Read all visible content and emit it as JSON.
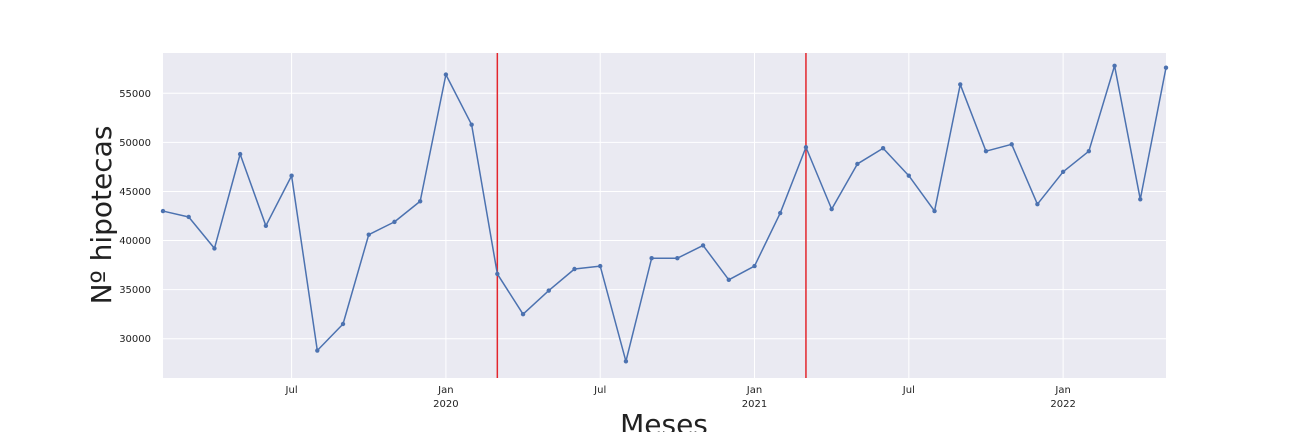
{
  "chart_data": {
    "type": "line",
    "title": "",
    "xlabel": "Meses",
    "ylabel": "Nº hipotecas",
    "x": [
      "2019-02",
      "2019-03",
      "2019-04",
      "2019-05",
      "2019-06",
      "2019-07",
      "2019-08",
      "2019-09",
      "2019-10",
      "2019-11",
      "2019-12",
      "2020-01",
      "2020-02",
      "2020-03",
      "2020-04",
      "2020-05",
      "2020-06",
      "2020-07",
      "2020-08",
      "2020-09",
      "2020-10",
      "2020-11",
      "2020-12",
      "2021-01",
      "2021-02",
      "2021-03",
      "2021-04",
      "2021-05",
      "2021-06",
      "2021-07",
      "2021-08",
      "2021-09",
      "2021-10",
      "2021-11",
      "2021-12",
      "2022-01",
      "2022-02",
      "2022-03",
      "2022-04",
      "2022-05"
    ],
    "series": [
      {
        "values": [
          43000,
          42400,
          39200,
          48800,
          41500,
          46600,
          28800,
          31500,
          40600,
          41900,
          44000,
          56900,
          51800,
          36600,
          32500,
          34900,
          37100,
          37400,
          27700,
          38200,
          38200,
          39500,
          36000,
          37400,
          42800,
          49500,
          43200,
          47800,
          49400,
          46600,
          43000,
          55900,
          49100,
          49800,
          43700,
          47000,
          49100,
          57800,
          44200,
          57600
        ],
        "color": "#4c72b0"
      }
    ],
    "vlines": [
      {
        "x": "2020-03",
        "color": "#e3262d"
      },
      {
        "x": "2021-03",
        "color": "#e3262d"
      }
    ],
    "xlim": [
      "2019-02",
      "2022-05"
    ],
    "ylim": [
      26000,
      59100
    ],
    "yticks": [
      30000,
      35000,
      40000,
      45000,
      50000,
      55000
    ],
    "xticks": [
      {
        "x": "2019-07",
        "label": "Jul",
        "sublabel": ""
      },
      {
        "x": "2020-01",
        "label": "Jan",
        "sublabel": "2020"
      },
      {
        "x": "2020-07",
        "label": "Jul",
        "sublabel": ""
      },
      {
        "x": "2021-01",
        "label": "Jan",
        "sublabel": "2021"
      },
      {
        "x": "2021-07",
        "label": "Jul",
        "sublabel": ""
      },
      {
        "x": "2022-01",
        "label": "Jan",
        "sublabel": "2022"
      }
    ],
    "grid": true,
    "legend": "none",
    "colors": {
      "background": "#eaeaf2",
      "grid": "#ffffff",
      "line": "#4c72b0",
      "vline": "#e3262d"
    }
  }
}
